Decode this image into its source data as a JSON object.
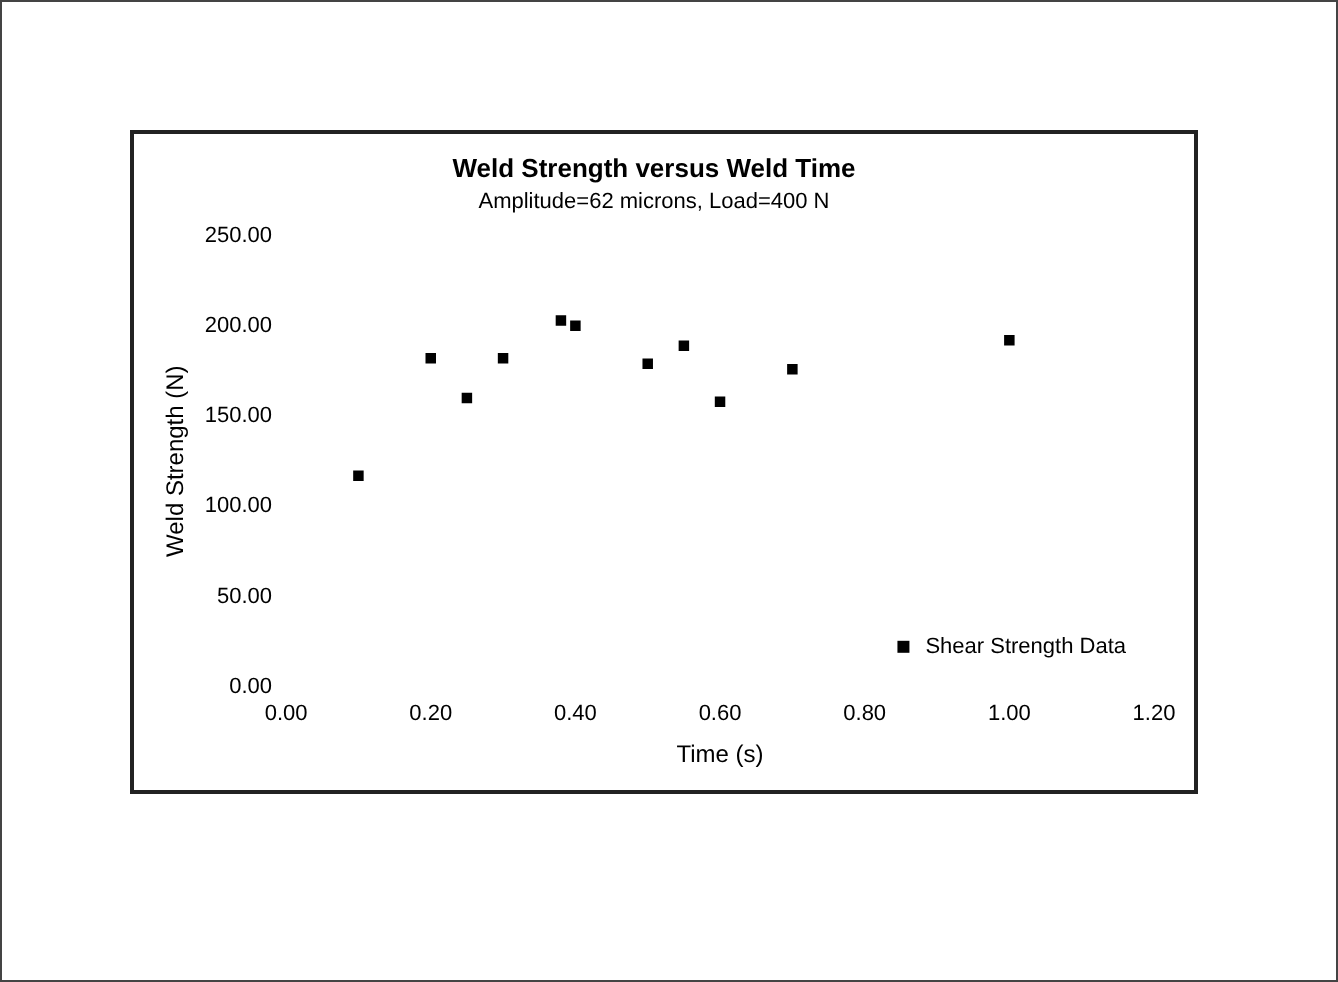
{
  "chart_data": {
    "type": "scatter",
    "title": "Weld Strength versus Weld Time",
    "subtitle": "Amplitude=62 microns, Load=400 N",
    "xlabel": "Time (s)",
    "ylabel": "Weld Strength (N)",
    "xlim": [
      0,
      1.2
    ],
    "xticks": [
      {
        "value": 0,
        "label": "0.00"
      },
      {
        "value": 0.2,
        "label": "0.20"
      },
      {
        "value": 0.4,
        "label": "0.40"
      },
      {
        "value": 0.6,
        "label": "0.60"
      },
      {
        "value": 0.8,
        "label": "0.80"
      },
      {
        "value": 1,
        "label": "1.00"
      },
      {
        "value": 1.2,
        "label": "1.20"
      }
    ],
    "ylim": [
      0,
      250
    ],
    "yticks": [
      {
        "value": 0,
        "label": "0.00"
      },
      {
        "value": 50,
        "label": "50.00"
      },
      {
        "value": 100,
        "label": "100.00"
      },
      {
        "value": 150,
        "label": "150.00"
      },
      {
        "value": 200,
        "label": "200.00"
      },
      {
        "value": 250,
        "label": "250.00"
      }
    ],
    "series": [
      {
        "name": "Shear Strength Data",
        "color": "#000000",
        "x": [
          0.1,
          0.2,
          0.25,
          0.3,
          0.38,
          0.4,
          0.5,
          0.55,
          0.6,
          0.7,
          1.0
        ],
        "values": [
          117,
          182,
          160,
          182,
          203,
          200,
          179,
          189,
          158,
          176,
          192
        ]
      }
    ],
    "marker": "square",
    "legend": "bottom right",
    "grid": false
  }
}
